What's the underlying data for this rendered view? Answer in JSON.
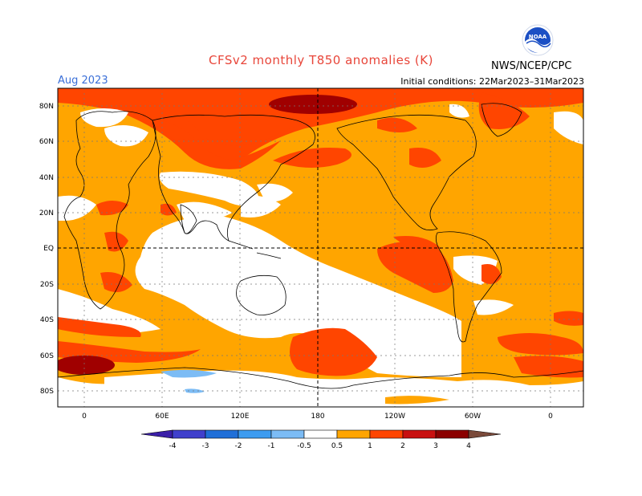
{
  "header": {
    "title": "CFSv2 monthly T850 anomalies (K)",
    "period": "Aug 2023",
    "initial_conditions": "Initial conditions: 22Mar2023–31Mar2023",
    "agency": "NWS/NCEP/CPC",
    "logo_text": "NOAA"
  },
  "axes": {
    "lat_labels": [
      "80N",
      "60N",
      "40N",
      "20N",
      "EQ",
      "20S",
      "40S",
      "60S",
      "80S"
    ],
    "lon_labels": [
      "0",
      "60E",
      "120E",
      "180",
      "120W",
      "60W",
      "0"
    ]
  },
  "colorbar": {
    "labels": [
      "-4",
      "-3",
      "-2",
      "-1",
      "-0.5",
      "0.5",
      "1",
      "2",
      "3",
      "4"
    ],
    "colors": [
      "#3b1fa8",
      "#4040cc",
      "#1f6fd8",
      "#3d9cf0",
      "#7cbcf5",
      "#ffffff",
      "#ffa500",
      "#ff4500",
      "#c81010",
      "#8b0000",
      "#c89690",
      "#7a4a3a"
    ]
  },
  "shading": {
    "ocean_default": "#ffa500",
    "warm": "#ff4500",
    "hot": "#a00000",
    "neutral": "#ffffff",
    "cool": "#7cbcf5"
  }
}
